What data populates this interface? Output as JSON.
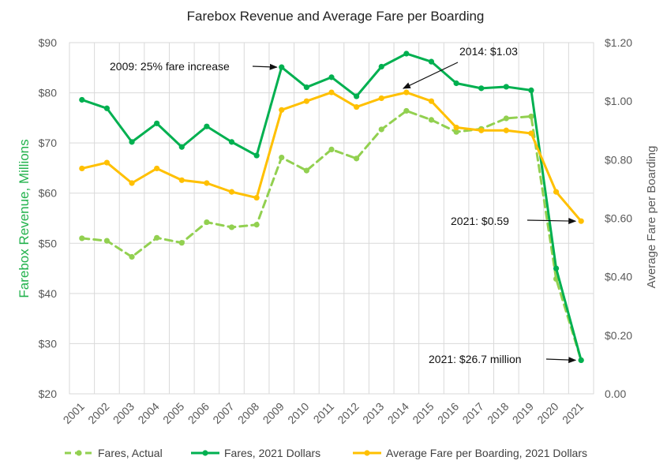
{
  "chart_data": {
    "type": "line",
    "title": "Farebox Revenue and Average Fare per Boarding",
    "ylabel_left": "Farebox Revenue,  Millions",
    "ylabel_right": "Average Fare per Boarding",
    "x": [
      "2001",
      "2002",
      "2003",
      "2004",
      "2005",
      "2006",
      "2007",
      "2008",
      "2009",
      "2010",
      "2011",
      "2012",
      "2013",
      "2014",
      "2015",
      "2016",
      "2017",
      "2018",
      "2019",
      "2020",
      "2021"
    ],
    "y_left": {
      "min": 20,
      "max": 90,
      "step": 10,
      "tick_labels": [
        "$20",
        "$30",
        "$40",
        "$50",
        "$60",
        "$70",
        "$80",
        "$90"
      ]
    },
    "y_right": {
      "min": 0,
      "max": 1.2,
      "step": 0.2,
      "tick_labels": [
        "0.00",
        "$0.20",
        "$0.40",
        "$0.60",
        "$0.80",
        "$1.00",
        "$1.20"
      ]
    },
    "grid": true,
    "legend_position": "bottom",
    "series": [
      {
        "name": "Fares, Actual",
        "axis": "left",
        "color": "#92d050",
        "style": "dashed",
        "x": [
          "2001",
          "2002",
          "2003",
          "2004",
          "2005",
          "2006",
          "2007",
          "2008",
          "2009",
          "2010",
          "2011",
          "2012",
          "2013",
          "2014",
          "2015",
          "2016",
          "2017",
          "2018",
          "2019",
          "2020",
          "2021"
        ],
        "values": [
          51.0,
          50.5,
          47.3,
          51.1,
          50.1,
          54.2,
          53.2,
          53.7,
          67.1,
          64.5,
          68.7,
          66.9,
          72.7,
          76.4,
          74.6,
          72.2,
          72.8,
          74.9,
          75.3,
          42.9,
          26.7
        ]
      },
      {
        "name": "Fares, 2021 Dollars",
        "axis": "left",
        "color": "#00b050",
        "style": "solid",
        "x": [
          "2001",
          "2002",
          "2003",
          "2004",
          "2005",
          "2006",
          "2007",
          "2008",
          "2009",
          "2010",
          "2011",
          "2012",
          "2013",
          "2014",
          "2015",
          "2016",
          "2017",
          "2018",
          "2019",
          "2020",
          "2021"
        ],
        "values": [
          78.6,
          76.9,
          70.2,
          73.9,
          69.2,
          73.3,
          70.2,
          67.5,
          85.1,
          81.1,
          83.1,
          79.3,
          85.2,
          87.8,
          86.2,
          81.9,
          80.9,
          81.2,
          80.5,
          45.0,
          26.7
        ]
      },
      {
        "name": "Average Fare per Boarding, 2021 Dollars",
        "axis": "right",
        "color": "#ffc000",
        "style": "solid",
        "x": [
          "2001",
          "2002",
          "2003",
          "2004",
          "2005",
          "2006",
          "2007",
          "2008",
          "2009",
          "2010",
          "2011",
          "2012",
          "2013",
          "2014",
          "2015",
          "2016",
          "2017",
          "2018",
          "2019",
          "2020",
          "2021"
        ],
        "values": [
          0.77,
          0.79,
          0.72,
          0.77,
          0.73,
          0.72,
          0.69,
          0.67,
          0.97,
          1.0,
          1.03,
          0.98,
          1.01,
          1.03,
          1.0,
          0.91,
          0.9,
          0.9,
          0.89,
          0.69,
          0.59
        ]
      }
    ],
    "annotations": [
      {
        "text": "2009: 25% fare increase",
        "points_to": {
          "series": "Fares, 2021 Dollars",
          "x": "2009",
          "y": 85.1
        }
      },
      {
        "text": "2014: $1.03",
        "points_to": {
          "series": "Average Fare per Boarding, 2021 Dollars",
          "x": "2014",
          "y": 1.03
        }
      },
      {
        "text": "2021: $0.59",
        "points_to": {
          "series": "Average Fare per Boarding, 2021 Dollars",
          "x": "2021",
          "y": 0.59
        }
      },
      {
        "text": "2021: $26.7 million",
        "points_to": {
          "series": "Fares, 2021 Dollars",
          "x": "2021",
          "y": 26.7
        }
      }
    ]
  }
}
